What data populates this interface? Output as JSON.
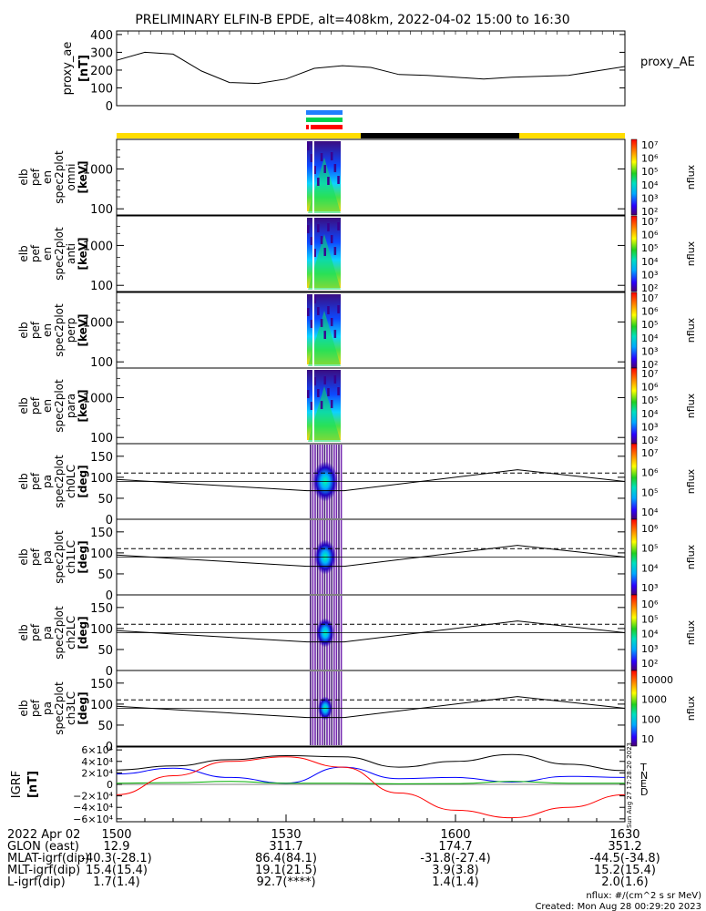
{
  "title": "PRELIMINARY ELFIN-B EPDE, alt=408km, 2022-04-02 15:00 to 16:30",
  "time_ticks": [
    "1500",
    "1530",
    "1600",
    "1630"
  ],
  "footer": {
    "date": "2022 Apr 02",
    "units": "nflux: #/(cm^2 s sr MeV)",
    "created": "Created: Mon Aug 28 00:29:20 2023",
    "side_stamp": "Sun Aug 27 17:28:20 2023"
  },
  "info_rows": [
    {
      "label": "GLON (east)",
      "values": [
        "12.9",
        "311.7",
        "174.7",
        "351.2"
      ]
    },
    {
      "label": "MLAT-igrf(dip)",
      "values": [
        "-40.3(-28.1)",
        "86.4(84.1)",
        "-31.8(-27.4)",
        "-44.5(-34.8)"
      ]
    },
    {
      "label": "MLT-igrf(dip)",
      "values": [
        "15.4(15.4)",
        "19.1(21.5)",
        "3.9(3.8)",
        "15.2(15.4)"
      ]
    },
    {
      "label": "L-igrf(dip)",
      "values": [
        "1.7(1.4)",
        "92.7(****)",
        "1.4(1.4)",
        "2.0(1.6)"
      ]
    }
  ],
  "proxy_ae": {
    "ylabel_line1": "proxy_ae",
    "ylabel_line2": "[nT]",
    "legend": "proxy_AE",
    "yticks": [
      "0",
      "100",
      "200",
      "300",
      "400"
    ],
    "ylim": [
      0,
      420
    ],
    "x_min": [
      0,
      5,
      10,
      15,
      20,
      25,
      30,
      35,
      40,
      45,
      50,
      55,
      60,
      65,
      70,
      75,
      80,
      85,
      90
    ],
    "values": [
      255,
      300,
      290,
      195,
      130,
      125,
      150,
      210,
      225,
      215,
      175,
      170,
      160,
      150,
      160,
      165,
      170,
      195,
      220
    ]
  },
  "energy_panels": [
    {
      "ylabel": [
        "elb",
        "pef",
        "en",
        "spec2plot",
        "omni",
        "[keV]"
      ],
      "cbar_label": "nflux"
    },
    {
      "ylabel": [
        "elb",
        "pef",
        "en",
        "spec2plot",
        "anti",
        "[keV]"
      ],
      "cbar_label": "nflux"
    },
    {
      "ylabel": [
        "elb",
        "pef",
        "en",
        "spec2plot",
        "perp",
        "[keV]"
      ],
      "cbar_label": "nflux"
    },
    {
      "ylabel": [
        "elb",
        "pef",
        "en",
        "spec2plot",
        "para",
        "[keV]"
      ],
      "cbar_label": "nflux"
    }
  ],
  "energy_yticks": [
    "100",
    "1000"
  ],
  "pa_yticks": [
    "0",
    "50",
    "100",
    "150"
  ],
  "pa_panels": [
    {
      "ylabel": [
        "elb",
        "pef",
        "pa",
        "spec2plot",
        "ch0LC",
        "[deg]"
      ],
      "cbar_label": "nflux",
      "cbar_ticks": [
        "10⁷",
        "10⁶",
        "10⁵",
        "10⁴"
      ]
    },
    {
      "ylabel": [
        "elb",
        "pef",
        "pa",
        "spec2plot",
        "ch1LC",
        "[deg]"
      ],
      "cbar_label": "nflux",
      "cbar_ticks": [
        "10⁶",
        "10⁵",
        "10⁴",
        "10³"
      ]
    },
    {
      "ylabel": [
        "elb",
        "pef",
        "pa",
        "spec2plot",
        "ch2LC",
        "[deg]"
      ],
      "cbar_label": "nflux",
      "cbar_ticks": [
        "10⁶",
        "10⁵",
        "10⁴",
        "10³",
        "10²"
      ]
    },
    {
      "ylabel": [
        "elb",
        "pef",
        "pa",
        "spec2plot",
        "ch3LC",
        "[deg]"
      ],
      "cbar_label": "nflux",
      "cbar_ticks": [
        "10000",
        "1000",
        "100",
        "10"
      ]
    }
  ],
  "energy_cbar_ticks": [
    "10⁷",
    "10⁶",
    "10⁵",
    "10⁴",
    "10³",
    "10²"
  ],
  "igrf": {
    "ylabel_line1": "IGRF",
    "ylabel_line2": "[nT]",
    "yticks": [
      "−6×10⁴",
      "−4×10⁴",
      "−2×10⁴",
      "0",
      "2×10⁴",
      "4×10⁴",
      "6×10⁴"
    ],
    "ylim": [
      -65000,
      65000
    ],
    "legend": [
      {
        "name": "T",
        "color": "#000000"
      },
      {
        "name": "N",
        "color": "#0000ff"
      },
      {
        "name": "E",
        "color": "#00b000"
      },
      {
        "name": "D",
        "color": "#ff0000"
      }
    ]
  },
  "chart_data": [
    {
      "type": "line",
      "ylabel": "proxy_ae [nT]",
      "ylim": [
        0,
        420
      ],
      "x": [
        "15:00",
        "15:05",
        "15:10",
        "15:15",
        "15:20",
        "15:25",
        "15:30",
        "15:35",
        "15:40",
        "15:45",
        "15:50",
        "15:55",
        "16:00",
        "16:05",
        "16:10",
        "16:15",
        "16:20",
        "16:25",
        "16:30"
      ],
      "series": [
        {
          "name": "proxy_AE",
          "values": [
            255,
            300,
            290,
            195,
            130,
            125,
            150,
            210,
            225,
            215,
            175,
            170,
            160,
            150,
            160,
            165,
            170,
            195,
            220
          ]
        }
      ]
    },
    {
      "type": "heatmap",
      "xlabel": "time",
      "ylabel": "energy [keV]",
      "note": "ELFIN-B energy spectrograms (omni, anti, perp, para), data only near 15:35-15:40",
      "colorbar": "nflux",
      "colorbar_range": [
        "10²",
        "10⁷"
      ]
    },
    {
      "type": "heatmap",
      "ylabel": "pitch angle [deg]",
      "ylim": [
        0,
        180
      ],
      "colorbar": "nflux"
    },
    {
      "type": "line",
      "ylabel": "IGRF [nT]",
      "ylim": [
        -65000,
        65000
      ],
      "x": [
        "15:00",
        "15:10",
        "15:20",
        "15:30",
        "15:40",
        "15:50",
        "16:00",
        "16:10",
        "16:20",
        "16:30"
      ],
      "series": [
        {
          "name": "T",
          "values": [
            25000,
            32000,
            43000,
            50000,
            48000,
            30000,
            40000,
            52000,
            35000,
            24000
          ]
        },
        {
          "name": "N",
          "values": [
            18000,
            28000,
            12000,
            2000,
            30000,
            10000,
            12000,
            4000,
            14000,
            12000
          ]
        },
        {
          "name": "E",
          "values": [
            2000,
            3000,
            5000,
            2000,
            2000,
            1000,
            1500,
            5000,
            2000,
            2000
          ]
        },
        {
          "name": "D",
          "values": [
            -18000,
            15000,
            40000,
            48000,
            30000,
            -15000,
            -45000,
            -58000,
            -40000,
            -18000
          ]
        }
      ]
    }
  ]
}
